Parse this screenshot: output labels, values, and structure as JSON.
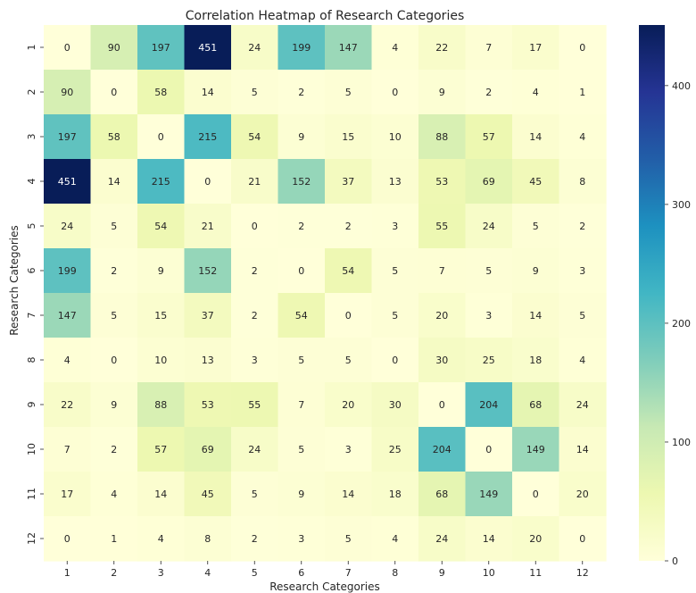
{
  "chart_data": {
    "type": "heatmap",
    "title": "Correlation Heatmap of Research Categories",
    "xlabel": "Research Categories",
    "ylabel": "Research Categories",
    "x_categories": [
      "1",
      "2",
      "3",
      "4",
      "5",
      "6",
      "7",
      "8",
      "9",
      "10",
      "11",
      "12"
    ],
    "y_categories": [
      "1",
      "2",
      "3",
      "4",
      "5",
      "6",
      "7",
      "8",
      "9",
      "10",
      "11",
      "12"
    ],
    "values": [
      [
        0,
        90,
        197,
        451,
        24,
        199,
        147,
        4,
        22,
        7,
        17,
        0
      ],
      [
        90,
        0,
        58,
        14,
        5,
        2,
        5,
        0,
        9,
        2,
        4,
        1
      ],
      [
        197,
        58,
        0,
        215,
        54,
        9,
        15,
        10,
        88,
        57,
        14,
        4
      ],
      [
        451,
        14,
        215,
        0,
        21,
        152,
        37,
        13,
        53,
        69,
        45,
        8
      ],
      [
        24,
        5,
        54,
        21,
        0,
        2,
        2,
        3,
        55,
        24,
        5,
        2
      ],
      [
        199,
        2,
        9,
        152,
        2,
        0,
        54,
        5,
        7,
        5,
        9,
        3
      ],
      [
        147,
        5,
        15,
        37,
        2,
        54,
        0,
        5,
        20,
        3,
        14,
        5
      ],
      [
        4,
        0,
        10,
        13,
        3,
        5,
        5,
        0,
        30,
        25,
        18,
        4
      ],
      [
        22,
        9,
        88,
        53,
        55,
        7,
        20,
        30,
        0,
        204,
        68,
        24
      ],
      [
        7,
        2,
        57,
        69,
        24,
        5,
        3,
        25,
        204,
        0,
        149,
        14
      ],
      [
        17,
        4,
        14,
        45,
        5,
        9,
        14,
        18,
        68,
        149,
        0,
        20
      ],
      [
        0,
        1,
        4,
        8,
        2,
        3,
        5,
        4,
        24,
        14,
        20,
        0
      ]
    ],
    "colorscale": "YlGnBu",
    "vmin": 0,
    "vmax": 451,
    "colorbar_ticks": [
      0,
      100,
      200,
      300,
      400
    ],
    "annotations": true
  }
}
